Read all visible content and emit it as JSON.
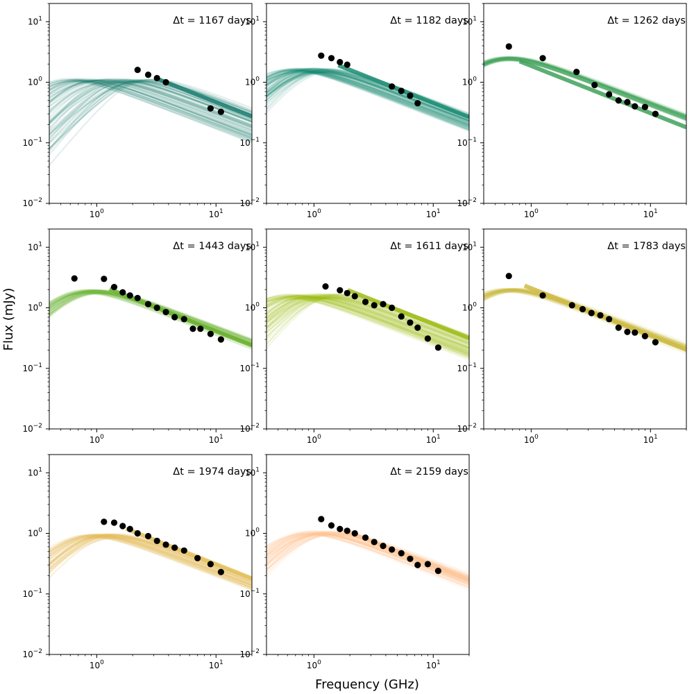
{
  "figure": {
    "xlabel": "Frequency (GHz)",
    "ylabel": "Flux (mJy)"
  },
  "chart_data": [
    {
      "type": "scatter",
      "label": "Δt = 1167 days",
      "color": "#177a6e",
      "xscale": "log",
      "yscale": "log",
      "xlim": [
        0.4,
        20
      ],
      "ylim": [
        0.01,
        20
      ],
      "model": {
        "band_min_x": 0.4,
        "band_max_x": 2.1,
        "peak_flux": 1.9,
        "spread_low": 0.75,
        "curve_count": 70
      },
      "points": [
        {
          "x": 2.2,
          "y": 1.6
        },
        {
          "x": 2.7,
          "y": 1.33
        },
        {
          "x": 3.2,
          "y": 1.17
        },
        {
          "x": 3.8,
          "y": 1.0
        },
        {
          "x": 9.0,
          "y": 0.37
        },
        {
          "x": 11.0,
          "y": 0.325
        }
      ]
    },
    {
      "type": "scatter",
      "label": "Δt = 1182 days",
      "color": "#1b8c72",
      "xscale": "log",
      "yscale": "log",
      "xlim": [
        0.4,
        20
      ],
      "ylim": [
        0.01,
        20
      ],
      "model": {
        "band_min_x": 0.45,
        "band_max_x": 1.0,
        "peak_flux": 2.8,
        "spread_low": 0.6,
        "curve_count": 70
      },
      "points": [
        {
          "x": 1.15,
          "y": 2.75
        },
        {
          "x": 1.4,
          "y": 2.5
        },
        {
          "x": 1.65,
          "y": 2.15
        },
        {
          "x": 1.9,
          "y": 1.95
        },
        {
          "x": 4.5,
          "y": 0.85
        },
        {
          "x": 5.4,
          "y": 0.72
        },
        {
          "x": 6.4,
          "y": 0.6
        },
        {
          "x": 7.4,
          "y": 0.45
        }
      ]
    },
    {
      "type": "scatter",
      "label": "Δt = 1262 days",
      "color": "#3fa15a",
      "xscale": "log",
      "yscale": "log",
      "xlim": [
        0.4,
        20
      ],
      "ylim": [
        0.01,
        20
      ],
      "model": {
        "band_min_x": 0.42,
        "band_max_x": 0.5,
        "peak_flux": 4.4,
        "spread_low": 0.15,
        "curve_count": 50
      },
      "points": [
        {
          "x": 0.65,
          "y": 3.9
        },
        {
          "x": 1.25,
          "y": 2.5
        },
        {
          "x": 2.4,
          "y": 1.48
        },
        {
          "x": 3.4,
          "y": 0.9
        },
        {
          "x": 4.5,
          "y": 0.63
        },
        {
          "x": 5.4,
          "y": 0.5
        },
        {
          "x": 6.4,
          "y": 0.47
        },
        {
          "x": 7.4,
          "y": 0.4
        },
        {
          "x": 9.0,
          "y": 0.39
        },
        {
          "x": 11.0,
          "y": 0.3
        }
      ]
    },
    {
      "type": "scatter",
      "label": "Δt = 1443 days",
      "color": "#6cb133",
      "xscale": "log",
      "yscale": "log",
      "xlim": [
        0.4,
        20
      ],
      "ylim": [
        0.01,
        20
      ],
      "model": {
        "band_min_x": 0.55,
        "band_max_x": 0.8,
        "peak_flux": 3.3,
        "spread_low": 0.2,
        "curve_count": 50
      },
      "points": [
        {
          "x": 0.65,
          "y": 3.05
        },
        {
          "x": 1.15,
          "y": 3.0
        },
        {
          "x": 1.4,
          "y": 2.2
        },
        {
          "x": 1.65,
          "y": 1.8
        },
        {
          "x": 1.9,
          "y": 1.6
        },
        {
          "x": 2.2,
          "y": 1.45
        },
        {
          "x": 2.7,
          "y": 1.15
        },
        {
          "x": 3.2,
          "y": 1.0
        },
        {
          "x": 3.8,
          "y": 0.85
        },
        {
          "x": 4.5,
          "y": 0.7
        },
        {
          "x": 5.4,
          "y": 0.65
        },
        {
          "x": 6.4,
          "y": 0.45
        },
        {
          "x": 7.4,
          "y": 0.45
        },
        {
          "x": 9.0,
          "y": 0.37
        },
        {
          "x": 11.0,
          "y": 0.3
        }
      ]
    },
    {
      "type": "scatter",
      "label": "Δt = 1611 days",
      "color": "#9cbb14",
      "xscale": "log",
      "yscale": "log",
      "xlim": [
        0.4,
        20
      ],
      "ylim": [
        0.01,
        20
      ],
      "model": {
        "band_min_x": 0.4,
        "band_max_x": 1.2,
        "peak_flux": 2.8,
        "spread_low": 0.75,
        "curve_count": 70
      },
      "points": [
        {
          "x": 1.25,
          "y": 2.25
        },
        {
          "x": 1.65,
          "y": 1.95
        },
        {
          "x": 1.9,
          "y": 1.75
        },
        {
          "x": 2.2,
          "y": 1.55
        },
        {
          "x": 2.7,
          "y": 1.25
        },
        {
          "x": 3.2,
          "y": 1.1
        },
        {
          "x": 3.8,
          "y": 1.15
        },
        {
          "x": 4.5,
          "y": 1.0
        },
        {
          "x": 5.4,
          "y": 0.72
        },
        {
          "x": 6.4,
          "y": 0.57
        },
        {
          "x": 7.4,
          "y": 0.47
        },
        {
          "x": 9.0,
          "y": 0.31
        },
        {
          "x": 11.0,
          "y": 0.22
        }
      ]
    },
    {
      "type": "scatter",
      "label": "Δt = 1783 days",
      "color": "#cebb45",
      "xscale": "log",
      "yscale": "log",
      "xlim": [
        0.4,
        20
      ],
      "ylim": [
        0.01,
        20
      ],
      "model": {
        "band_min_x": 0.42,
        "band_max_x": 0.55,
        "peak_flux": 3.5,
        "spread_low": 0.15,
        "curve_count": 50
      },
      "points": [
        {
          "x": 0.65,
          "y": 3.35
        },
        {
          "x": 1.25,
          "y": 1.6
        },
        {
          "x": 2.2,
          "y": 1.1
        },
        {
          "x": 2.7,
          "y": 0.95
        },
        {
          "x": 3.2,
          "y": 0.82
        },
        {
          "x": 3.8,
          "y": 0.75
        },
        {
          "x": 4.5,
          "y": 0.65
        },
        {
          "x": 5.4,
          "y": 0.47
        },
        {
          "x": 6.4,
          "y": 0.4
        },
        {
          "x": 7.4,
          "y": 0.39
        },
        {
          "x": 9.0,
          "y": 0.34
        },
        {
          "x": 11.0,
          "y": 0.27
        }
      ]
    },
    {
      "type": "scatter",
      "label": "Δt = 1974 days",
      "color": "#e3bf5c",
      "xscale": "log",
      "yscale": "log",
      "xlim": [
        0.4,
        20
      ],
      "ylim": [
        0.01,
        20
      ],
      "model": {
        "band_min_x": 0.6,
        "band_max_x": 1.1,
        "peak_flux": 1.65,
        "spread_low": 0.4,
        "curve_count": 60
      },
      "points": [
        {
          "x": 1.15,
          "y": 1.55
        },
        {
          "x": 1.4,
          "y": 1.5
        },
        {
          "x": 1.65,
          "y": 1.32
        },
        {
          "x": 1.9,
          "y": 1.18
        },
        {
          "x": 2.2,
          "y": 1.0
        },
        {
          "x": 2.7,
          "y": 0.9
        },
        {
          "x": 3.2,
          "y": 0.75
        },
        {
          "x": 3.8,
          "y": 0.65
        },
        {
          "x": 4.5,
          "y": 0.58
        },
        {
          "x": 5.4,
          "y": 0.52
        },
        {
          "x": 7.0,
          "y": 0.39
        },
        {
          "x": 9.0,
          "y": 0.31
        },
        {
          "x": 11.0,
          "y": 0.23
        }
      ]
    },
    {
      "type": "scatter",
      "label": "Δt = 2159 days",
      "color": "#fcc496",
      "xscale": "log",
      "yscale": "log",
      "xlim": [
        0.4,
        20
      ],
      "ylim": [
        0.01,
        20
      ],
      "model": {
        "band_min_x": 0.6,
        "band_max_x": 1.1,
        "peak_flux": 1.8,
        "spread_low": 0.45,
        "curve_count": 60
      },
      "points": [
        {
          "x": 1.15,
          "y": 1.72
        },
        {
          "x": 1.4,
          "y": 1.35
        },
        {
          "x": 1.65,
          "y": 1.18
        },
        {
          "x": 1.9,
          "y": 1.1
        },
        {
          "x": 2.2,
          "y": 1.0
        },
        {
          "x": 2.7,
          "y": 0.85
        },
        {
          "x": 3.2,
          "y": 0.72
        },
        {
          "x": 3.8,
          "y": 0.62
        },
        {
          "x": 4.5,
          "y": 0.54
        },
        {
          "x": 5.4,
          "y": 0.47
        },
        {
          "x": 6.4,
          "y": 0.38
        },
        {
          "x": 7.4,
          "y": 0.3
        },
        {
          "x": 9.0,
          "y": 0.31
        },
        {
          "x": 11.0,
          "y": 0.24
        }
      ]
    }
  ]
}
